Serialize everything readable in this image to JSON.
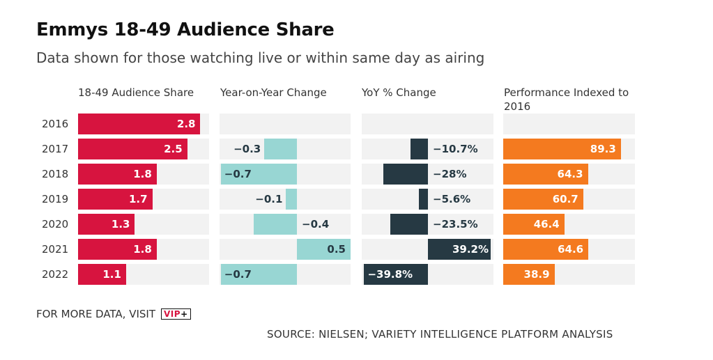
{
  "title": "Emmys 18-49 Audience Share",
  "subtitle": "Data shown for those watching live or within same day as airing",
  "footer": {
    "more_data": "FOR MORE DATA, VISIT",
    "badge_text": "VIP",
    "badge_plus": "+",
    "source": "SOURCE: NIELSEN; VARIETY INTELLIGENCE PLATFORM ANALYSIS"
  },
  "colors": {
    "share": "#d7143f",
    "yoy_change": "#98d6d3",
    "yoy_pct": "#263943",
    "indexed": "#f47a1f",
    "cell_background": "#f2f2f2"
  },
  "chart_data": {
    "type": "bar",
    "categories": [
      "2016",
      "2017",
      "2018",
      "2019",
      "2020",
      "2021",
      "2022"
    ],
    "panels": [
      {
        "name": "18-49 Audience Share",
        "values": [
          2.8,
          2.5,
          1.8,
          1.7,
          1.3,
          1.8,
          1.1
        ],
        "labels": [
          "2.8",
          "2.5",
          "1.8",
          "1.7",
          "1.3",
          "1.8",
          "1.1"
        ]
      },
      {
        "name": "Year-on-Year Change",
        "values": [
          null,
          -0.3,
          -0.7,
          -0.1,
          -0.4,
          0.5,
          -0.7
        ],
        "labels": [
          "",
          "−0.3",
          "−0.7",
          "−0.1",
          "−0.4",
          "0.5",
          "−0.7"
        ]
      },
      {
        "name": "YoY % Change",
        "values": [
          null,
          -10.7,
          -28,
          -5.6,
          -23.5,
          39.2,
          -39.8
        ],
        "labels": [
          "",
          "−10.7%",
          "−28%",
          "−5.6%",
          "−23.5%",
          "39.2%",
          "−39.8%"
        ]
      },
      {
        "name": "Performance Indexed to 2016",
        "values": [
          null,
          89.3,
          64.3,
          60.7,
          46.4,
          64.6,
          38.9
        ],
        "labels": [
          "",
          "89.3",
          "64.3",
          "60.7",
          "46.4",
          "64.6",
          "38.9"
        ]
      }
    ]
  }
}
